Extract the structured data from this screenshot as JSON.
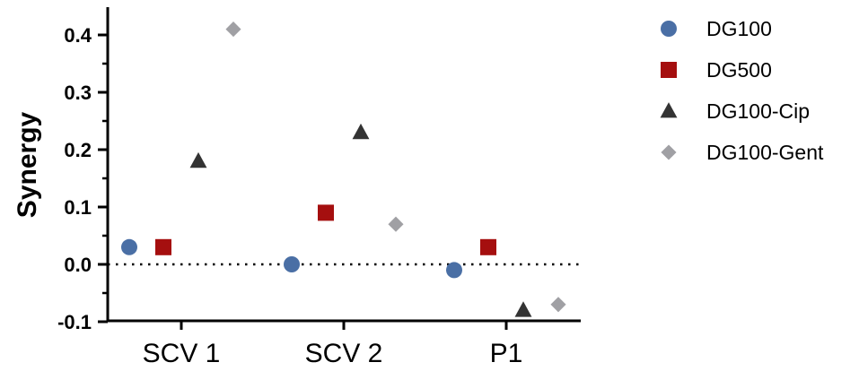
{
  "chart_data": {
    "type": "scatter",
    "title": "",
    "xlabel": "",
    "ylabel": "Synergy",
    "categories": [
      "SCV 1",
      "SCV 2",
      "P1"
    ],
    "ylim": [
      -0.1,
      0.45
    ],
    "yticks": [
      "-0.1",
      "0.0",
      "0.1",
      "0.2",
      "0.3",
      "0.4"
    ],
    "ytick_values": [
      -0.1,
      0.0,
      0.1,
      0.2,
      0.3,
      0.4
    ],
    "reference_line": 0.0,
    "grid": false,
    "legend_position": "right",
    "series": [
      {
        "name": "DG100",
        "marker": "circle",
        "color": "#4a6fa5",
        "values": [
          0.03,
          0.0,
          -0.01
        ]
      },
      {
        "name": "DG500",
        "marker": "square",
        "color": "#a50f0f",
        "values": [
          0.03,
          0.09,
          0.03
        ]
      },
      {
        "name": "DG100-Cip",
        "marker": "triangle",
        "color": "#333333",
        "values": [
          0.18,
          0.23,
          -0.08
        ]
      },
      {
        "name": "DG100-Gent",
        "marker": "diamond",
        "color": "#a0a0a4",
        "values": [
          0.41,
          0.07,
          -0.07
        ]
      }
    ]
  }
}
